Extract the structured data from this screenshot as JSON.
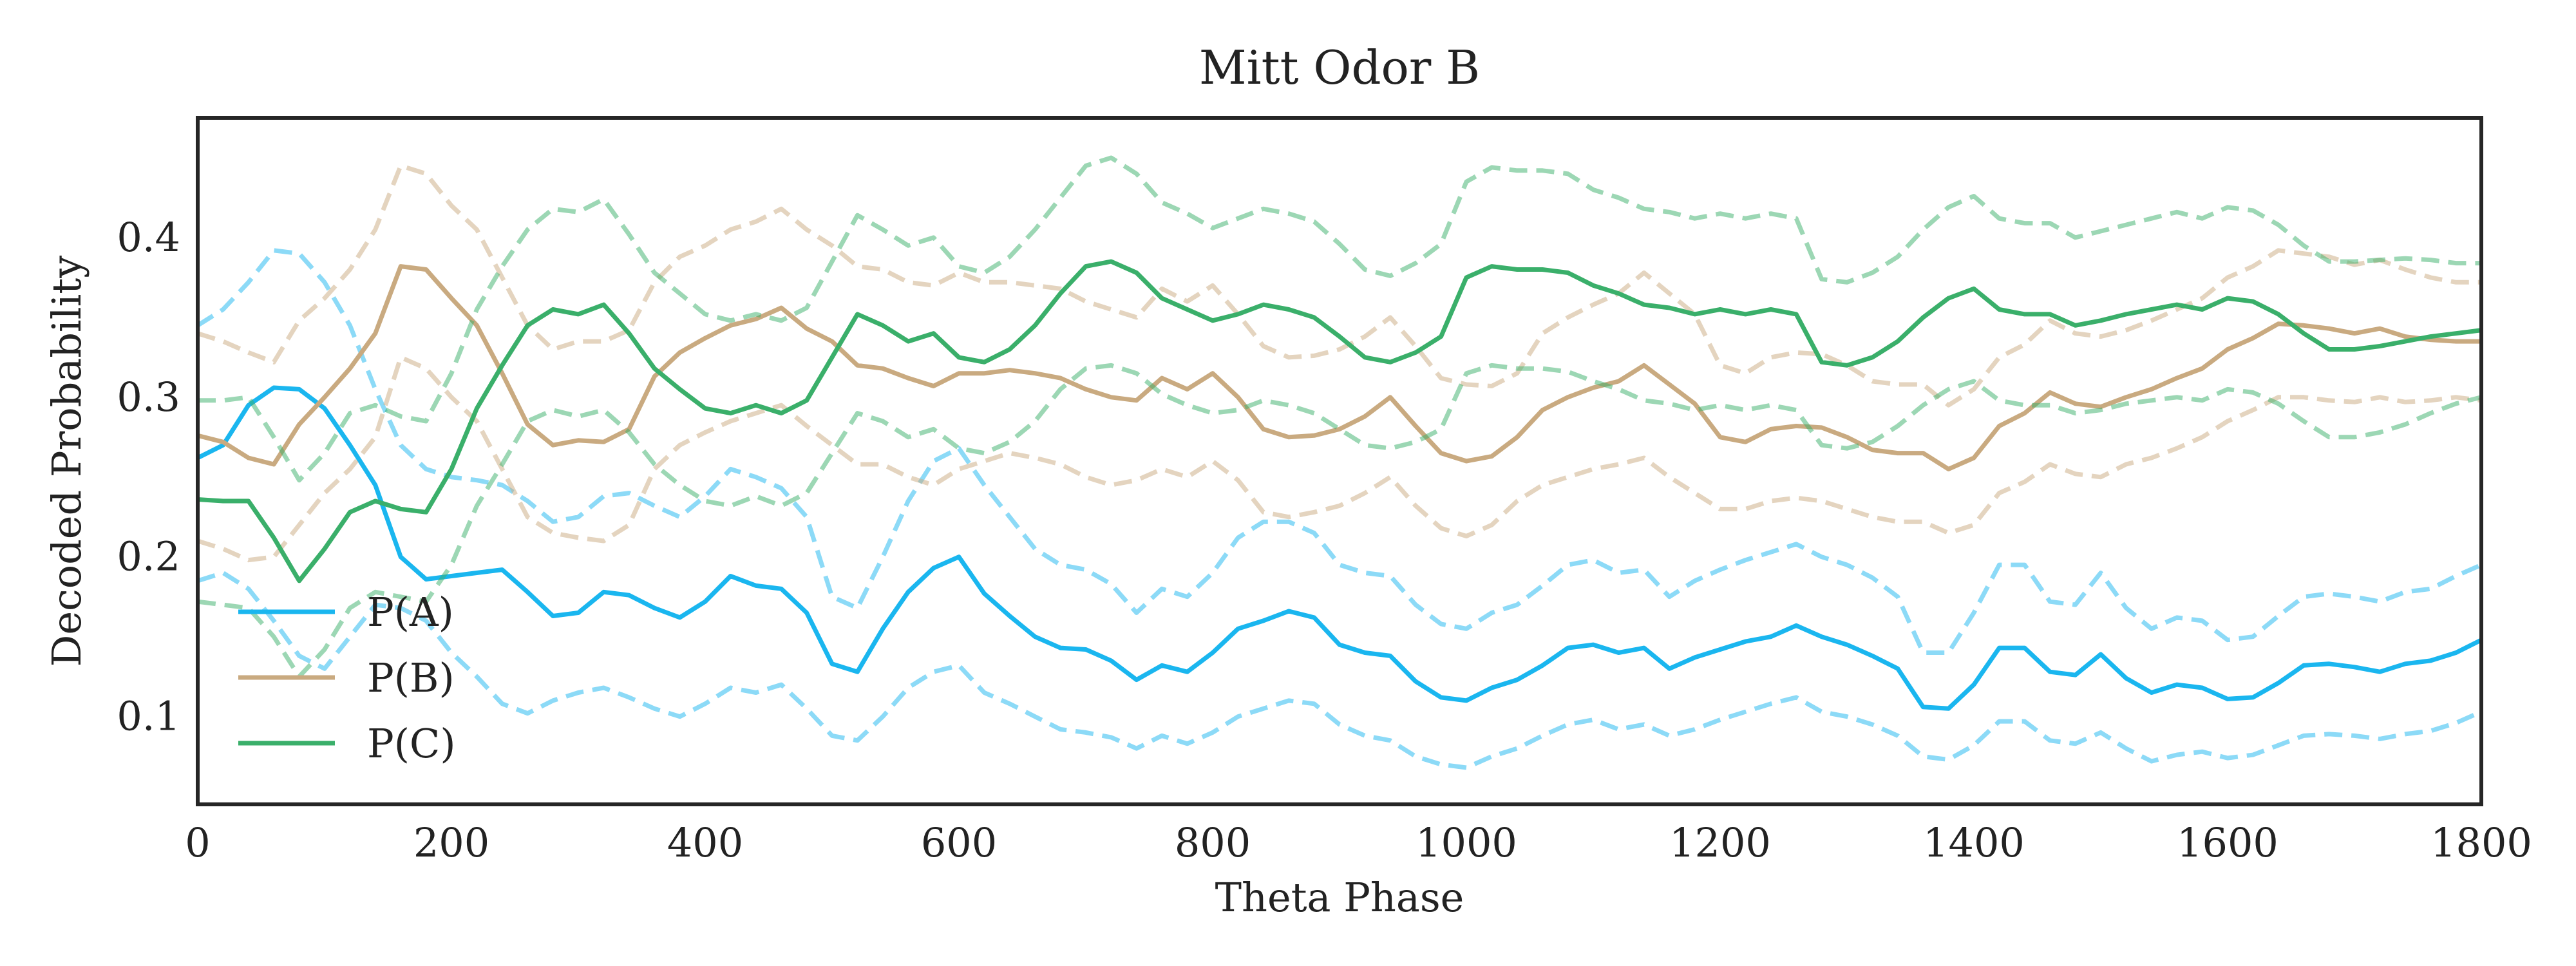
{
  "chart_data": {
    "type": "line",
    "title": "Mitt Odor B",
    "xlabel": "Theta Phase",
    "ylabel": "Decoded Probability",
    "xlim": [
      0,
      1800
    ],
    "ylim": [
      0.045,
      0.475
    ],
    "xticks": [
      0,
      200,
      400,
      600,
      800,
      1000,
      1200,
      1400,
      1600,
      1800
    ],
    "yticks": [
      0.1,
      0.2,
      0.3,
      0.4
    ],
    "grid": false,
    "legend": {
      "position": "lower-left",
      "entries": [
        "P(A)",
        "P(B)",
        "P(C)"
      ]
    },
    "series": [
      {
        "name": "P(A)",
        "color": "#1ab6ef",
        "x": [
          0,
          20,
          40,
          60,
          80,
          100,
          120,
          140,
          160,
          180,
          200,
          220,
          240,
          260,
          280,
          300,
          320,
          340,
          360,
          380,
          400,
          420,
          440,
          460,
          480,
          500,
          520,
          540,
          560,
          580,
          600,
          620,
          640,
          660,
          680,
          700,
          720,
          740,
          760,
          780,
          800,
          820,
          840,
          860,
          880,
          900,
          920,
          940,
          960,
          980,
          1000,
          1020,
          1040,
          1060,
          1080,
          1100,
          1120,
          1140,
          1160,
          1180,
          1200,
          1220,
          1240,
          1260,
          1280,
          1300,
          1320,
          1340,
          1360,
          1380,
          1400,
          1420,
          1440,
          1460,
          1480,
          1500,
          1520,
          1540,
          1560,
          1580,
          1600,
          1620,
          1640,
          1660,
          1680,
          1700,
          1720,
          1740,
          1760,
          1780,
          1800
        ],
        "values": [
          0.262,
          0.27,
          0.295,
          0.306,
          0.305,
          0.293,
          0.27,
          0.245,
          0.2,
          0.186,
          0.188,
          0.19,
          0.192,
          0.178,
          0.163,
          0.165,
          0.178,
          0.176,
          0.168,
          0.162,
          0.172,
          0.188,
          0.182,
          0.18,
          0.165,
          0.133,
          0.128,
          0.155,
          0.178,
          0.193,
          0.2,
          0.177,
          0.163,
          0.15,
          0.143,
          0.142,
          0.135,
          0.123,
          0.132,
          0.128,
          0.14,
          0.155,
          0.16,
          0.166,
          0.162,
          0.145,
          0.14,
          0.138,
          0.122,
          0.112,
          0.11,
          0.118,
          0.123,
          0.132,
          0.143,
          0.145,
          0.14,
          0.143,
          0.13,
          0.137,
          0.142,
          0.147,
          0.15,
          0.157,
          0.15,
          0.145,
          0.138,
          0.13,
          0.106,
          0.105,
          0.12,
          0.143,
          0.143,
          0.128,
          0.126,
          0.139,
          0.124,
          0.115,
          0.12,
          0.118,
          0.111,
          0.112,
          0.121,
          0.132,
          0.133,
          0.131,
          0.128,
          0.133,
          0.135,
          0.14,
          0.148
        ],
        "lower": [
          0.185,
          0.19,
          0.18,
          0.16,
          0.138,
          0.13,
          0.15,
          0.17,
          0.168,
          0.16,
          0.14,
          0.125,
          0.108,
          0.102,
          0.11,
          0.115,
          0.118,
          0.112,
          0.105,
          0.1,
          0.108,
          0.118,
          0.115,
          0.12,
          0.105,
          0.088,
          0.085,
          0.1,
          0.118,
          0.128,
          0.132,
          0.115,
          0.108,
          0.1,
          0.092,
          0.09,
          0.087,
          0.08,
          0.088,
          0.083,
          0.09,
          0.1,
          0.105,
          0.11,
          0.108,
          0.095,
          0.088,
          0.085,
          0.075,
          0.07,
          0.068,
          0.075,
          0.08,
          0.088,
          0.095,
          0.098,
          0.092,
          0.095,
          0.088,
          0.092,
          0.098,
          0.103,
          0.108,
          0.112,
          0.103,
          0.1,
          0.095,
          0.088,
          0.075,
          0.073,
          0.082,
          0.097,
          0.097,
          0.085,
          0.083,
          0.09,
          0.08,
          0.072,
          0.076,
          0.078,
          0.074,
          0.076,
          0.082,
          0.088,
          0.089,
          0.088,
          0.086,
          0.089,
          0.091,
          0.096,
          0.103
        ],
        "upper": [
          0.345,
          0.355,
          0.372,
          0.392,
          0.39,
          0.372,
          0.345,
          0.305,
          0.27,
          0.255,
          0.25,
          0.248,
          0.245,
          0.235,
          0.222,
          0.225,
          0.238,
          0.24,
          0.232,
          0.225,
          0.238,
          0.255,
          0.25,
          0.243,
          0.225,
          0.175,
          0.168,
          0.2,
          0.235,
          0.26,
          0.268,
          0.245,
          0.225,
          0.205,
          0.195,
          0.192,
          0.183,
          0.165,
          0.18,
          0.175,
          0.19,
          0.212,
          0.222,
          0.222,
          0.215,
          0.195,
          0.19,
          0.188,
          0.17,
          0.158,
          0.155,
          0.165,
          0.17,
          0.182,
          0.195,
          0.198,
          0.19,
          0.192,
          0.175,
          0.185,
          0.192,
          0.198,
          0.203,
          0.208,
          0.2,
          0.195,
          0.187,
          0.175,
          0.14,
          0.14,
          0.165,
          0.195,
          0.195,
          0.172,
          0.17,
          0.19,
          0.168,
          0.155,
          0.162,
          0.16,
          0.148,
          0.15,
          0.163,
          0.175,
          0.177,
          0.175,
          0.172,
          0.178,
          0.18,
          0.188,
          0.195
        ]
      },
      {
        "name": "P(B)",
        "color": "#c9aa80",
        "x": [
          0,
          20,
          40,
          60,
          80,
          100,
          120,
          140,
          160,
          180,
          200,
          220,
          240,
          260,
          280,
          300,
          320,
          340,
          360,
          380,
          400,
          420,
          440,
          460,
          480,
          500,
          520,
          540,
          560,
          580,
          600,
          620,
          640,
          660,
          680,
          700,
          720,
          740,
          760,
          780,
          800,
          820,
          840,
          860,
          880,
          900,
          920,
          940,
          960,
          980,
          1000,
          1020,
          1040,
          1060,
          1080,
          1100,
          1120,
          1140,
          1160,
          1180,
          1200,
          1220,
          1240,
          1260,
          1280,
          1300,
          1320,
          1340,
          1360,
          1380,
          1400,
          1420,
          1440,
          1460,
          1480,
          1500,
          1520,
          1540,
          1560,
          1580,
          1600,
          1620,
          1640,
          1660,
          1680,
          1700,
          1720,
          1740,
          1760,
          1780,
          1800
        ],
        "values": [
          0.276,
          0.272,
          0.262,
          0.258,
          0.283,
          0.3,
          0.318,
          0.34,
          0.382,
          0.38,
          0.362,
          0.345,
          0.315,
          0.283,
          0.27,
          0.273,
          0.272,
          0.28,
          0.313,
          0.328,
          0.337,
          0.345,
          0.349,
          0.356,
          0.343,
          0.335,
          0.32,
          0.318,
          0.312,
          0.307,
          0.315,
          0.315,
          0.317,
          0.315,
          0.312,
          0.305,
          0.3,
          0.298,
          0.312,
          0.305,
          0.315,
          0.3,
          0.28,
          0.275,
          0.276,
          0.28,
          0.288,
          0.3,
          0.282,
          0.265,
          0.26,
          0.263,
          0.275,
          0.292,
          0.3,
          0.306,
          0.31,
          0.32,
          0.308,
          0.296,
          0.275,
          0.272,
          0.28,
          0.282,
          0.281,
          0.275,
          0.267,
          0.265,
          0.265,
          0.255,
          0.262,
          0.282,
          0.29,
          0.303,
          0.296,
          0.294,
          0.3,
          0.305,
          0.312,
          0.318,
          0.33,
          0.337,
          0.346,
          0.345,
          0.343,
          0.34,
          0.343,
          0.338,
          0.336,
          0.335,
          0.335
        ],
        "lower": [
          0.21,
          0.205,
          0.198,
          0.2,
          0.22,
          0.24,
          0.255,
          0.275,
          0.325,
          0.318,
          0.3,
          0.285,
          0.255,
          0.225,
          0.215,
          0.212,
          0.21,
          0.22,
          0.255,
          0.27,
          0.278,
          0.285,
          0.29,
          0.295,
          0.282,
          0.27,
          0.258,
          0.258,
          0.25,
          0.245,
          0.255,
          0.26,
          0.265,
          0.262,
          0.258,
          0.25,
          0.245,
          0.248,
          0.255,
          0.25,
          0.26,
          0.248,
          0.228,
          0.225,
          0.228,
          0.232,
          0.24,
          0.25,
          0.232,
          0.218,
          0.213,
          0.22,
          0.235,
          0.245,
          0.25,
          0.255,
          0.258,
          0.262,
          0.25,
          0.24,
          0.23,
          0.23,
          0.235,
          0.237,
          0.235,
          0.23,
          0.225,
          0.222,
          0.222,
          0.215,
          0.22,
          0.24,
          0.247,
          0.258,
          0.252,
          0.25,
          0.258,
          0.262,
          0.268,
          0.275,
          0.285,
          0.292,
          0.3,
          0.3,
          0.298,
          0.297,
          0.3,
          0.297,
          0.298,
          0.3,
          0.298
        ],
        "upper": [
          0.34,
          0.335,
          0.328,
          0.322,
          0.348,
          0.362,
          0.38,
          0.405,
          0.445,
          0.44,
          0.42,
          0.405,
          0.375,
          0.345,
          0.33,
          0.335,
          0.335,
          0.342,
          0.372,
          0.388,
          0.395,
          0.405,
          0.41,
          0.418,
          0.405,
          0.395,
          0.382,
          0.38,
          0.372,
          0.37,
          0.378,
          0.372,
          0.372,
          0.37,
          0.368,
          0.36,
          0.355,
          0.35,
          0.368,
          0.36,
          0.37,
          0.352,
          0.332,
          0.325,
          0.326,
          0.33,
          0.338,
          0.35,
          0.332,
          0.312,
          0.308,
          0.307,
          0.315,
          0.34,
          0.35,
          0.358,
          0.365,
          0.378,
          0.365,
          0.352,
          0.32,
          0.315,
          0.325,
          0.328,
          0.327,
          0.32,
          0.31,
          0.308,
          0.308,
          0.295,
          0.305,
          0.325,
          0.333,
          0.348,
          0.34,
          0.338,
          0.342,
          0.348,
          0.355,
          0.362,
          0.375,
          0.382,
          0.392,
          0.39,
          0.388,
          0.383,
          0.386,
          0.38,
          0.375,
          0.372,
          0.372
        ]
      },
      {
        "name": "P(C)",
        "color": "#3aaf6a",
        "x": [
          0,
          20,
          40,
          60,
          80,
          100,
          120,
          140,
          160,
          180,
          200,
          220,
          240,
          260,
          280,
          300,
          320,
          340,
          360,
          380,
          400,
          420,
          440,
          460,
          480,
          500,
          520,
          540,
          560,
          580,
          600,
          620,
          640,
          660,
          680,
          700,
          720,
          740,
          760,
          780,
          800,
          820,
          840,
          860,
          880,
          900,
          920,
          940,
          960,
          980,
          1000,
          1020,
          1040,
          1060,
          1080,
          1100,
          1120,
          1140,
          1160,
          1180,
          1200,
          1220,
          1240,
          1260,
          1280,
          1300,
          1320,
          1340,
          1360,
          1380,
          1400,
          1420,
          1440,
          1460,
          1480,
          1500,
          1520,
          1540,
          1560,
          1580,
          1600,
          1620,
          1640,
          1660,
          1680,
          1700,
          1720,
          1740,
          1760,
          1780,
          1800
        ],
        "values": [
          0.236,
          0.235,
          0.235,
          0.212,
          0.185,
          0.205,
          0.228,
          0.235,
          0.23,
          0.228,
          0.255,
          0.293,
          0.32,
          0.345,
          0.355,
          0.352,
          0.358,
          0.34,
          0.318,
          0.305,
          0.293,
          0.29,
          0.295,
          0.29,
          0.298,
          0.325,
          0.352,
          0.345,
          0.335,
          0.34,
          0.325,
          0.322,
          0.33,
          0.345,
          0.365,
          0.382,
          0.385,
          0.378,
          0.362,
          0.355,
          0.348,
          0.352,
          0.358,
          0.355,
          0.35,
          0.338,
          0.325,
          0.322,
          0.328,
          0.338,
          0.375,
          0.382,
          0.38,
          0.38,
          0.378,
          0.37,
          0.365,
          0.358,
          0.356,
          0.352,
          0.355,
          0.352,
          0.355,
          0.352,
          0.322,
          0.32,
          0.325,
          0.335,
          0.35,
          0.362,
          0.368,
          0.355,
          0.352,
          0.352,
          0.345,
          0.348,
          0.352,
          0.355,
          0.358,
          0.355,
          0.362,
          0.36,
          0.352,
          0.34,
          0.33,
          0.33,
          0.332,
          0.335,
          0.338,
          0.34,
          0.342
        ],
        "lower": [
          0.172,
          0.17,
          0.168,
          0.15,
          0.125,
          0.142,
          0.168,
          0.178,
          0.175,
          0.172,
          0.195,
          0.232,
          0.258,
          0.285,
          0.292,
          0.288,
          0.292,
          0.278,
          0.258,
          0.245,
          0.235,
          0.232,
          0.238,
          0.232,
          0.24,
          0.265,
          0.29,
          0.285,
          0.275,
          0.28,
          0.268,
          0.265,
          0.272,
          0.285,
          0.305,
          0.318,
          0.32,
          0.315,
          0.302,
          0.295,
          0.29,
          0.292,
          0.298,
          0.295,
          0.29,
          0.28,
          0.27,
          0.268,
          0.272,
          0.28,
          0.315,
          0.32,
          0.318,
          0.318,
          0.316,
          0.31,
          0.305,
          0.298,
          0.296,
          0.292,
          0.295,
          0.292,
          0.295,
          0.292,
          0.27,
          0.268,
          0.272,
          0.282,
          0.295,
          0.305,
          0.31,
          0.298,
          0.295,
          0.295,
          0.29,
          0.292,
          0.296,
          0.298,
          0.3,
          0.298,
          0.305,
          0.303,
          0.296,
          0.285,
          0.275,
          0.275,
          0.278,
          0.283,
          0.29,
          0.296,
          0.3
        ],
        "upper": [
          0.298,
          0.298,
          0.3,
          0.275,
          0.248,
          0.265,
          0.29,
          0.295,
          0.288,
          0.285,
          0.315,
          0.355,
          0.382,
          0.405,
          0.418,
          0.416,
          0.424,
          0.402,
          0.378,
          0.365,
          0.352,
          0.348,
          0.352,
          0.348,
          0.356,
          0.385,
          0.414,
          0.405,
          0.395,
          0.4,
          0.382,
          0.378,
          0.388,
          0.405,
          0.425,
          0.445,
          0.45,
          0.44,
          0.422,
          0.415,
          0.406,
          0.412,
          0.418,
          0.415,
          0.41,
          0.396,
          0.38,
          0.376,
          0.384,
          0.396,
          0.435,
          0.444,
          0.442,
          0.442,
          0.44,
          0.43,
          0.425,
          0.418,
          0.416,
          0.412,
          0.415,
          0.412,
          0.415,
          0.412,
          0.374,
          0.372,
          0.378,
          0.388,
          0.405,
          0.419,
          0.426,
          0.412,
          0.409,
          0.409,
          0.4,
          0.404,
          0.408,
          0.412,
          0.416,
          0.412,
          0.419,
          0.417,
          0.408,
          0.395,
          0.385,
          0.385,
          0.386,
          0.387,
          0.386,
          0.384,
          0.384
        ]
      }
    ]
  }
}
